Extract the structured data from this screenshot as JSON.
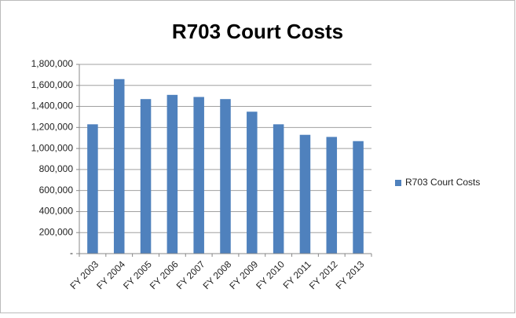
{
  "chart_data": {
    "type": "bar",
    "title": "R703 Court Costs",
    "categories": [
      "FY 2003",
      "FY 2004",
      "FY 2005",
      "FY 2006",
      "FY 2007",
      "FY 2008",
      "FY 2009",
      "FY 2010",
      "FY 2011",
      "FY 2012",
      "FY 2013"
    ],
    "series": [
      {
        "name": "R703 Court Costs",
        "color": "#4f81bd",
        "values": [
          1230000,
          1660000,
          1470000,
          1510000,
          1490000,
          1470000,
          1350000,
          1230000,
          1130000,
          1110000,
          1070000
        ]
      }
    ],
    "ylim": [
      0,
      1800000
    ],
    "yticks": [
      {
        "value": 0,
        "label": "-"
      },
      {
        "value": 200000,
        "label": "200,000"
      },
      {
        "value": 400000,
        "label": "400,000"
      },
      {
        "value": 600000,
        "label": "600,000"
      },
      {
        "value": 800000,
        "label": "800,000"
      },
      {
        "value": 1000000,
        "label": "1,000,000"
      },
      {
        "value": 1200000,
        "label": "1,200,000"
      },
      {
        "value": 1400000,
        "label": "1,400,000"
      },
      {
        "value": 1600000,
        "label": "1,600,000"
      },
      {
        "value": 1800000,
        "label": "1,800,000"
      }
    ],
    "grid": true,
    "legend": "right"
  }
}
